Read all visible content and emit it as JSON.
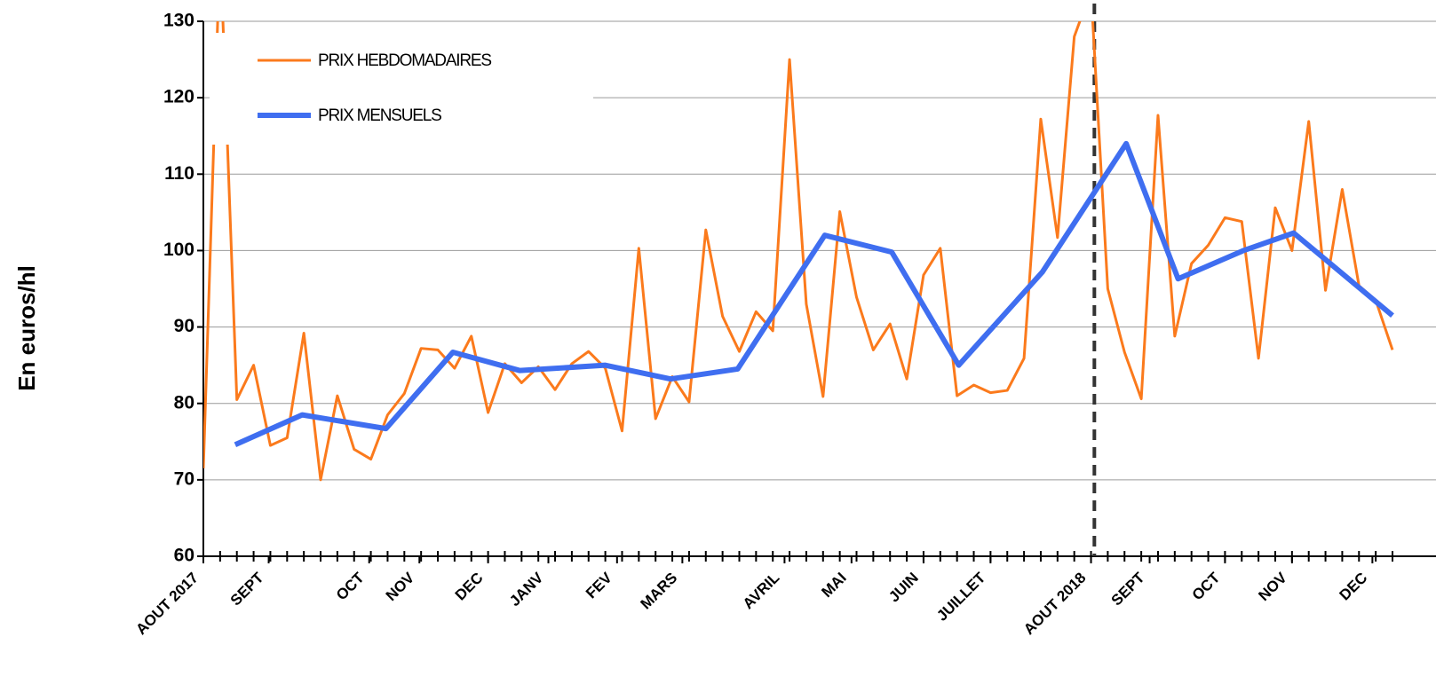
{
  "chart_data": {
    "type": "line",
    "y_label": "En euros/hl",
    "xlim": [
      0,
      71
    ],
    "ylim": [
      60,
      130
    ],
    "yticks": [
      60,
      70,
      80,
      90,
      100,
      110,
      120,
      130
    ],
    "xticks": [
      {
        "value": 0,
        "label": "AOUT 2017"
      },
      {
        "value": 3.9,
        "label": "SEPT"
      },
      {
        "value": 9.9,
        "label": "OCT"
      },
      {
        "value": 12.9,
        "label": "NOV"
      },
      {
        "value": 17,
        "label": "DEC"
      },
      {
        "value": 20.6,
        "label": "JANV"
      },
      {
        "value": 24.7,
        "label": "FEV"
      },
      {
        "value": 28.6,
        "label": "MARS"
      },
      {
        "value": 34.7,
        "label": "AVRIL"
      },
      {
        "value": 38.7,
        "label": "MAI"
      },
      {
        "value": 43,
        "label": "JUIN"
      },
      {
        "value": 47,
        "label": "JUILLET"
      },
      {
        "value": 53,
        "label": "AOUT 2018"
      },
      {
        "value": 56.5,
        "label": "SEPT"
      },
      {
        "value": 61,
        "label": "OCT"
      },
      {
        "value": 65,
        "label": "NOV"
      },
      {
        "value": 69.8,
        "label": "DEC"
      }
    ],
    "xticks_minor": [
      0,
      1,
      2,
      3,
      4,
      5,
      6,
      7,
      8,
      9,
      10,
      11,
      12,
      13,
      14,
      15,
      16,
      17,
      18,
      19,
      20,
      21,
      22,
      23,
      24,
      25,
      26,
      27,
      28,
      29,
      30,
      31,
      32,
      33,
      34,
      35,
      36,
      37,
      38,
      39,
      40,
      41,
      42,
      43,
      44,
      45,
      46,
      47,
      48,
      49,
      50,
      51,
      52,
      53,
      54,
      55,
      56,
      57,
      58,
      59,
      60,
      61,
      62,
      63,
      64,
      65,
      66,
      67,
      68,
      69,
      70,
      71
    ],
    "grid": true,
    "vline": 53.2,
    "series": [
      {
        "name": "PRIX HEBDOMADAIRES",
        "color": "#fb7a1c",
        "width": 3,
        "x": [
          0,
          1,
          2,
          3,
          4,
          5,
          6,
          7,
          8,
          9,
          10,
          11,
          12,
          13,
          14,
          15,
          16,
          17,
          18,
          19,
          20,
          21,
          22,
          23,
          24,
          25,
          26,
          27,
          28,
          29,
          30,
          31,
          32,
          33,
          34,
          35,
          36,
          37,
          38,
          39,
          40,
          41,
          42,
          43,
          44,
          45,
          46,
          47,
          48,
          49,
          50,
          51,
          52,
          53,
          54,
          55,
          56,
          57,
          58,
          59,
          60,
          61,
          62,
          63,
          64,
          65,
          66,
          67,
          68,
          69,
          70,
          71
        ],
        "values": [
          71.5,
          140,
          80.5,
          85,
          74.5,
          75.5,
          89.2,
          70,
          81,
          74,
          72.7,
          78.5,
          81.3,
          87.2,
          87,
          84.6,
          88.8,
          78.8,
          85.2,
          82.7,
          84.8,
          81.8,
          85.2,
          86.8,
          84.6,
          76.4,
          100.3,
          78,
          83.5,
          80.2,
          102.7,
          91.4,
          86.8,
          92,
          89.5,
          125,
          93,
          80.9,
          105.1,
          93.9,
          87,
          90.4,
          83.2,
          96.8,
          100.3,
          81,
          82.4,
          81.4,
          81.7,
          85.9,
          117.2,
          101.7,
          128,
          134,
          95,
          86.7,
          80.6,
          117.7,
          88.8,
          98.3,
          100.7,
          104.3,
          103.8,
          85.9,
          105.6,
          100,
          116.9,
          94.8,
          108,
          95.4,
          93.5,
          87
        ]
      },
      {
        "name": "PRIX MENSUELS",
        "color": "#3f6ef0",
        "width": 6,
        "x": [
          1.9,
          5.9,
          10.9,
          14.9,
          18.9,
          24,
          27.9,
          31.9,
          37.1,
          41.1,
          45.1,
          50.1,
          55.1,
          58.2,
          62.1,
          65.1,
          71
        ],
        "values": [
          74.6,
          78.5,
          76.7,
          86.7,
          84.3,
          85,
          83.2,
          84.5,
          102,
          99.8,
          85,
          97.2,
          114,
          96.3,
          100,
          102.3,
          91.5
        ]
      }
    ]
  }
}
